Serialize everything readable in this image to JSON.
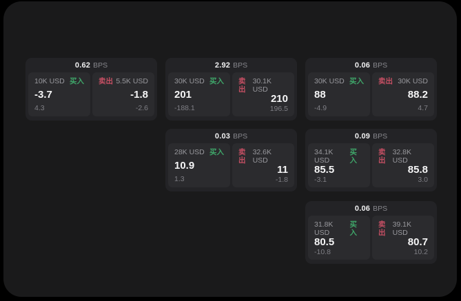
{
  "colors": {
    "page_bg": "#000000",
    "window_bg": "#1a1a1b",
    "card_bg": "#232326",
    "subcard_bg": "#2b2b2e",
    "buy_green": "#3fa569",
    "sell_red": "#c44f63",
    "value_white": "#f5f5f6",
    "label_gray": "#98989d"
  },
  "unit_label": "BPS",
  "cards": [
    {
      "grid": {
        "row": 1,
        "col": 1
      },
      "bps": "0.62",
      "unit": "BPS",
      "buy": {
        "amount": "10K USD",
        "label": "买入",
        "value": "-3.7",
        "delta": "4.3"
      },
      "sell": {
        "label": "卖出",
        "amount": "5.5K USD",
        "value": "-1.8",
        "delta": "-2.6"
      }
    },
    {
      "grid": {
        "row": 1,
        "col": 2
      },
      "bps": "2.92",
      "unit": "BPS",
      "buy": {
        "amount": "30K USD",
        "label": "买入",
        "value": "201",
        "delta": "-188.1"
      },
      "sell": {
        "label": "卖出",
        "amount": "30.1K USD",
        "value": "210",
        "delta": "196.5"
      }
    },
    {
      "grid": {
        "row": 1,
        "col": 3
      },
      "bps": "0.06",
      "unit": "BPS",
      "buy": {
        "amount": "30K USD",
        "label": "买入",
        "value": "88",
        "delta": "-4.9"
      },
      "sell": {
        "label": "卖出",
        "amount": "30K USD",
        "value": "88.2",
        "delta": "4.7"
      }
    },
    {
      "grid": {
        "row": 2,
        "col": 2
      },
      "bps": "0.03",
      "unit": "BPS",
      "buy": {
        "amount": "28K USD",
        "label": "买入",
        "value": "10.9",
        "delta": "1.3"
      },
      "sell": {
        "label": "卖出",
        "amount": "32.6K USD",
        "value": "11",
        "delta": "-1.8"
      }
    },
    {
      "grid": {
        "row": 2,
        "col": 3
      },
      "bps": "0.09",
      "unit": "BPS",
      "buy": {
        "amount": "34.1K USD",
        "label": "买入",
        "value": "85.5",
        "delta": "-3.1"
      },
      "sell": {
        "label": "卖出",
        "amount": "32.8K USD",
        "value": "85.8",
        "delta": "3.0"
      }
    },
    {
      "grid": {
        "row": 3,
        "col": 3
      },
      "bps": "0.06",
      "unit": "BPS",
      "buy": {
        "amount": "31.8K USD",
        "label": "买入",
        "value": "80.5",
        "delta": "-10.8"
      },
      "sell": {
        "label": "卖出",
        "amount": "39.1K USD",
        "value": "80.7",
        "delta": "10.2"
      }
    }
  ]
}
